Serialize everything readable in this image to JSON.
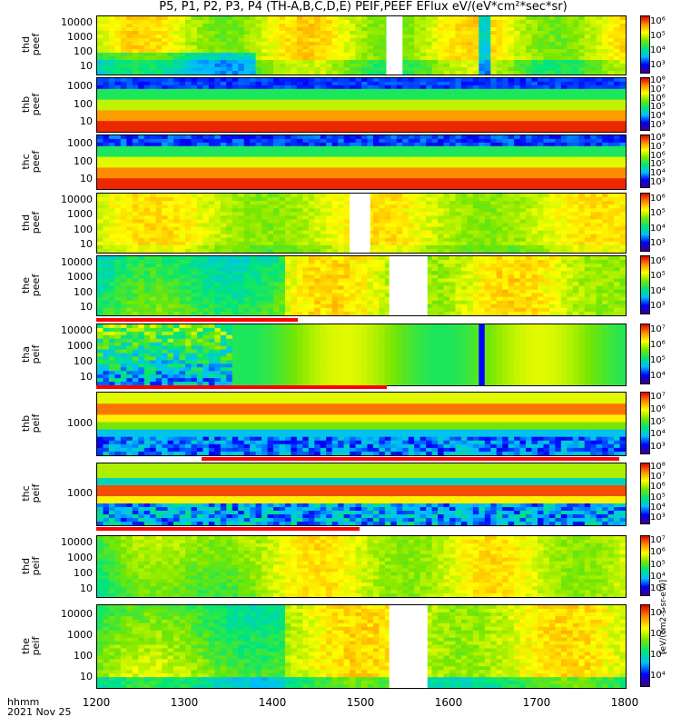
{
  "title": "P5, P1, P2, P3, P4 (TH-A,B,C,D,E) PEIF,PEEF EFlux eV/(eV*cm²*sec*sr)",
  "colorbar_units": "[eV/(cm2-s-sr-eV)]",
  "x_axis": {
    "label_line1": "hhmm",
    "label_line2": "2021 Nov 25",
    "ticks": [
      "1200",
      "1300",
      "1400",
      "1500",
      "1600",
      "1700",
      "1800"
    ]
  },
  "panels": [
    {
      "label": "thd\npeef",
      "ticks": [
        "10000",
        "1000",
        "100",
        "10"
      ],
      "cb": [
        "10⁶",
        "10⁵",
        "10⁴",
        "10³"
      ]
    },
    {
      "label": "thb\npeef",
      "ticks": [
        "1000",
        "100",
        "10"
      ],
      "cb": [
        "10⁸",
        "10⁷",
        "10⁶",
        "10⁵",
        "10⁴",
        "10³"
      ]
    },
    {
      "label": "thc\npeef",
      "ticks": [
        "1000",
        "100",
        "10"
      ],
      "cb": [
        "10⁸",
        "10⁷",
        "10⁶",
        "10⁵",
        "10⁴",
        "10³"
      ]
    },
    {
      "label": "thd\npeef",
      "ticks": [
        "10000",
        "1000",
        "100",
        "10"
      ],
      "cb": [
        "10⁶",
        "10⁵",
        "10⁴",
        "10³"
      ]
    },
    {
      "label": "the\npeef",
      "ticks": [
        "10000",
        "1000",
        "100",
        "10"
      ],
      "cb": [
        "10⁶",
        "10⁵",
        "10⁴",
        "10³"
      ]
    },
    {
      "label": "tha\npeif",
      "ticks": [
        "10000",
        "1000",
        "100",
        "10"
      ],
      "cb": [
        "10⁷",
        "10⁶",
        "10⁵",
        "10⁴"
      ]
    },
    {
      "label": "thb\npeif",
      "ticks": [
        "1000"
      ],
      "cb": [
        "10⁷",
        "10⁶",
        "10⁵",
        "10⁴",
        "10³"
      ]
    },
    {
      "label": "thc\npeif",
      "ticks": [
        "1000"
      ],
      "cb": [
        "10⁸",
        "10⁷",
        "10⁶",
        "10⁵",
        "10⁴",
        "10³"
      ]
    },
    {
      "label": "thd\npeif",
      "ticks": [
        "10000",
        "1000",
        "100",
        "10"
      ],
      "cb": [
        "10⁷",
        "10⁶",
        "10⁵",
        "10⁴",
        "10³"
      ]
    },
    {
      "label": "the\npeif",
      "ticks": [
        "10000",
        "1000",
        "100",
        "10"
      ],
      "cb": [
        "10⁷",
        "10⁶",
        "10⁵",
        "10⁴"
      ]
    }
  ],
  "chart_data": {
    "type": "heatmap",
    "title": "P5, P1, P2, P3, P4 (TH-A,B,C,D,E) PEIF,PEEF EFlux eV/(eV*cm²*sec*sr)",
    "xlabel": "hhmm",
    "date": "2021 Nov 25",
    "x_range": [
      "1200",
      "1800"
    ],
    "x_ticks": [
      "1200",
      "1300",
      "1400",
      "1500",
      "1600",
      "1700",
      "1800"
    ],
    "y_scale": "log",
    "z_scale": "log",
    "panels": [
      {
        "name": "thd peef",
        "y_ticks": [
          10000,
          1000,
          100,
          10
        ],
        "data_gaps": [
          [
            "1517",
            "1528"
          ]
        ]
      },
      {
        "name": "thb peef",
        "y_ticks": [
          1000,
          100,
          10
        ]
      },
      {
        "name": "thc peef",
        "y_ticks": [
          1000,
          100,
          10
        ]
      },
      {
        "name": "thd peef",
        "y_ticks": [
          10000,
          1000,
          100,
          10
        ],
        "data_gaps": [
          [
            "1452",
            "1466"
          ]
        ]
      },
      {
        "name": "the peef",
        "y_ticks": [
          10000,
          1000,
          100,
          10
        ],
        "data_gaps": [
          [
            "1519",
            "1545"
          ]
        ]
      },
      {
        "name": "tha peif",
        "y_ticks": [
          10000,
          1000,
          100,
          10
        ]
      },
      {
        "name": "thb peif",
        "y_ticks": [
          1000
        ]
      },
      {
        "name": "thc peif",
        "y_ticks": [
          1000
        ]
      },
      {
        "name": "thd peif",
        "y_ticks": [
          10000,
          1000,
          100,
          10
        ]
      },
      {
        "name": "the peif",
        "y_ticks": [
          10000,
          1000,
          100,
          10
        ],
        "data_gaps": [
          [
            "1519",
            "1545"
          ]
        ]
      }
    ]
  }
}
